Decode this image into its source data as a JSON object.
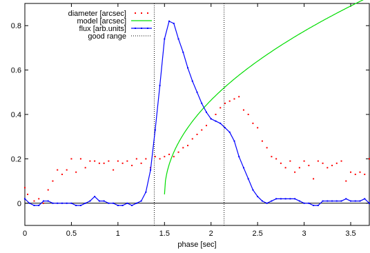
{
  "chart_data": {
    "type": "scatter",
    "xlabel": "phase [sec]",
    "ylabel": "",
    "xlim": [
      0,
      3.7
    ],
    "ylim": [
      -0.1,
      0.9
    ],
    "xticks": [
      0,
      0.5,
      1,
      1.5,
      2,
      2.5,
      3,
      3.5
    ],
    "xtick_labels": [
      "0",
      "0.5",
      "1",
      "1.5",
      "2",
      "2.5",
      "3",
      "3.5"
    ],
    "yticks": [
      0,
      0.2,
      0.4,
      0.6,
      0.8
    ],
    "ytick_labels": [
      "0",
      "0.2",
      "0.4",
      "0.6",
      "0.8"
    ],
    "grid": false,
    "legend_position": "top-left",
    "zero_line": 0,
    "good_range": [
      1.39,
      2.14
    ],
    "series": [
      {
        "name": "diameter [arcsec]",
        "style": "points",
        "color": "#ff0000",
        "x": [
          0.0,
          0.03,
          0.1,
          0.15,
          0.2,
          0.25,
          0.3,
          0.35,
          0.4,
          0.45,
          0.5,
          0.55,
          0.6,
          0.65,
          0.7,
          0.75,
          0.8,
          0.85,
          0.9,
          0.95,
          1.0,
          1.05,
          1.1,
          1.15,
          1.2,
          1.25,
          1.3,
          1.35,
          1.4,
          1.45,
          1.5,
          1.55,
          1.6,
          1.65,
          1.7,
          1.75,
          1.8,
          1.85,
          1.9,
          1.95,
          2.0,
          2.05,
          2.1,
          2.15,
          2.2,
          2.25,
          2.3,
          2.35,
          2.4,
          2.45,
          2.5,
          2.55,
          2.6,
          2.65,
          2.7,
          2.75,
          2.8,
          2.85,
          2.9,
          2.95,
          3.0,
          3.05,
          3.1,
          3.15,
          3.2,
          3.25,
          3.3,
          3.35,
          3.4,
          3.45,
          3.5,
          3.55,
          3.6,
          3.65,
          3.7
        ],
        "y": [
          0.07,
          0.04,
          0.01,
          0.02,
          0.0,
          0.06,
          0.1,
          0.15,
          0.13,
          0.15,
          0.2,
          0.14,
          0.2,
          0.16,
          0.19,
          0.19,
          0.18,
          0.18,
          0.19,
          0.15,
          0.19,
          0.18,
          0.19,
          0.17,
          0.2,
          0.18,
          0.2,
          0.16,
          0.21,
          0.2,
          0.21,
          0.22,
          0.21,
          0.23,
          0.25,
          0.26,
          0.29,
          0.31,
          0.33,
          0.35,
          0.38,
          0.4,
          0.43,
          0.45,
          0.46,
          0.47,
          0.48,
          0.42,
          0.4,
          0.36,
          0.34,
          0.28,
          0.25,
          0.21,
          0.2,
          0.18,
          0.16,
          0.19,
          0.14,
          0.16,
          0.19,
          0.17,
          0.11,
          0.19,
          0.18,
          0.16,
          0.17,
          0.18,
          0.19,
          0.1,
          0.14,
          0.13,
          0.14,
          0.13,
          0.2
        ]
      },
      {
        "name": "model [arcsec]",
        "style": "line",
        "color": "#00dd00",
        "model": "sqrt",
        "x0": 1.5,
        "y_start": 0.04,
        "coef": 0.6,
        "x_end": 3.65
      },
      {
        "name": "flux [arb.units]",
        "style": "linespoints",
        "color": "#0000ff",
        "x": [
          0.0,
          0.05,
          0.1,
          0.15,
          0.2,
          0.25,
          0.3,
          0.35,
          0.4,
          0.45,
          0.5,
          0.55,
          0.6,
          0.65,
          0.7,
          0.75,
          0.8,
          0.85,
          0.9,
          0.95,
          1.0,
          1.05,
          1.1,
          1.15,
          1.2,
          1.25,
          1.3,
          1.35,
          1.4,
          1.45,
          1.5,
          1.55,
          1.6,
          1.65,
          1.7,
          1.75,
          1.8,
          1.85,
          1.9,
          1.95,
          2.0,
          2.05,
          2.1,
          2.15,
          2.2,
          2.25,
          2.3,
          2.35,
          2.4,
          2.45,
          2.5,
          2.55,
          2.6,
          2.65,
          2.7,
          2.75,
          2.8,
          2.85,
          2.9,
          2.95,
          3.0,
          3.05,
          3.1,
          3.15,
          3.2,
          3.25,
          3.3,
          3.35,
          3.4,
          3.45,
          3.5,
          3.55,
          3.6,
          3.65,
          3.7
        ],
        "y": [
          0.02,
          0.0,
          -0.01,
          -0.01,
          0.01,
          0.01,
          0.0,
          0.0,
          0.0,
          0.0,
          0.0,
          -0.01,
          -0.01,
          0.0,
          0.01,
          0.03,
          0.01,
          0.01,
          0.0,
          0.0,
          -0.01,
          -0.01,
          0.0,
          -0.01,
          0.0,
          0.01,
          0.05,
          0.15,
          0.33,
          0.53,
          0.74,
          0.82,
          0.81,
          0.74,
          0.68,
          0.61,
          0.55,
          0.5,
          0.45,
          0.41,
          0.38,
          0.37,
          0.36,
          0.34,
          0.32,
          0.28,
          0.21,
          0.16,
          0.11,
          0.06,
          0.03,
          0.01,
          0.0,
          0.01,
          0.02,
          0.02,
          0.02,
          0.02,
          0.02,
          0.01,
          0.0,
          0.0,
          -0.01,
          -0.01,
          0.01,
          0.01,
          0.01,
          0.01,
          0.01,
          0.02,
          0.01,
          0.01,
          0.01,
          0.02,
          0.0
        ]
      },
      {
        "name": "good range",
        "style": "dotted-vertical",
        "color": "#000000"
      }
    ]
  }
}
